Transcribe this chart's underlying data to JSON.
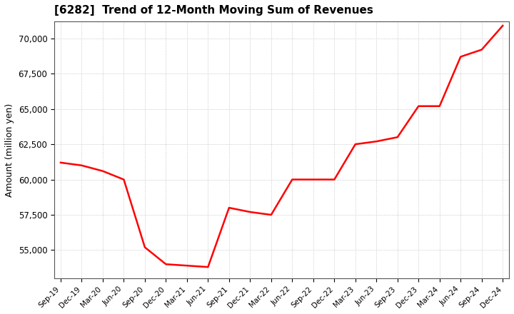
{
  "title": "[6282]  Trend of 12-Month Moving Sum of Revenues",
  "ylabel": "Amount (million yen)",
  "line_color": "#ff0000",
  "line_width": 1.8,
  "background_color": "#ffffff",
  "plot_bg_color": "#ffffff",
  "grid_color": "#bbbbbb",
  "ylim": [
    53000,
    71200
  ],
  "yticks": [
    55000,
    57500,
    60000,
    62500,
    65000,
    67500,
    70000
  ],
  "labels": [
    "Sep-19",
    "Dec-19",
    "Mar-20",
    "Jun-20",
    "Sep-20",
    "Dec-20",
    "Mar-21",
    "Jun-21",
    "Sep-21",
    "Dec-21",
    "Mar-22",
    "Jun-22",
    "Sep-22",
    "Dec-22",
    "Mar-23",
    "Jun-23",
    "Sep-23",
    "Dec-23",
    "Mar-24",
    "Jun-24",
    "Sep-24",
    "Dec-24"
  ],
  "values": [
    61200,
    61000,
    60600,
    60000,
    55200,
    54000,
    53900,
    53800,
    58000,
    57700,
    57500,
    60000,
    60000,
    60000,
    62500,
    62700,
    63000,
    65200,
    65200,
    68700,
    69200,
    70900
  ]
}
